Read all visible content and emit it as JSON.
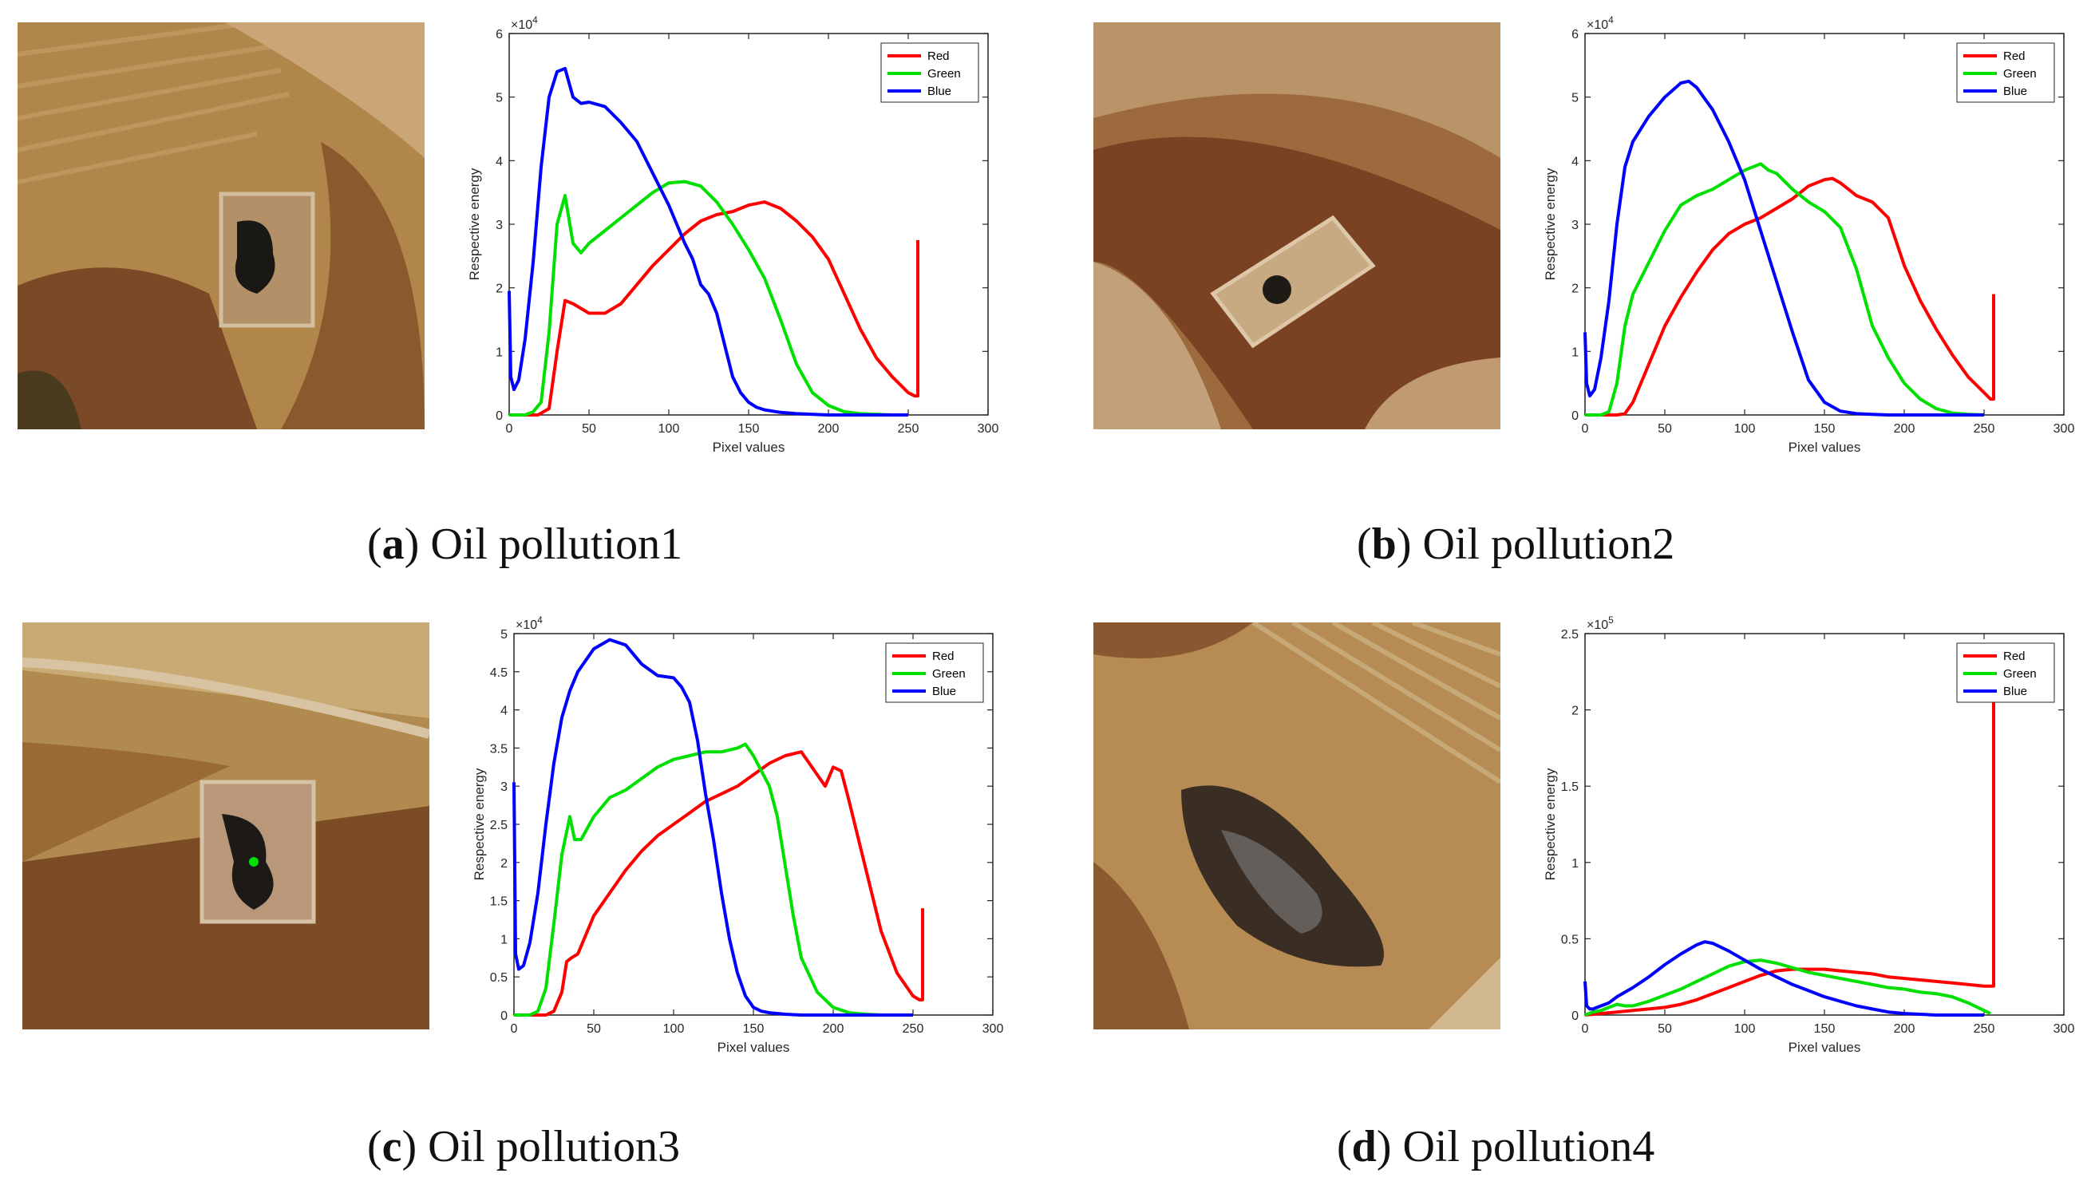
{
  "figure": {
    "panels": [
      {
        "letter": "a",
        "name": "Oil pollution1",
        "photo_alt": "aerial photo of oil pollution site 1"
      },
      {
        "letter": "b",
        "name": "Oil pollution2",
        "photo_alt": "aerial photo of oil pollution site 2"
      },
      {
        "letter": "c",
        "name": "Oil pollution3",
        "photo_alt": "aerial photo of oil pollution site 3"
      },
      {
        "letter": "d",
        "name": "Oil pollution4",
        "photo_alt": "aerial photo of oil pollution site 4"
      }
    ],
    "colors": {
      "red": "#ff0000",
      "green": "#00e000",
      "blue": "#0000ff",
      "axis": "#262626"
    }
  },
  "chart_data": [
    {
      "type": "line",
      "title": "",
      "xlabel": "Pixel values",
      "ylabel": "Respective energy",
      "xlim": [
        0,
        300
      ],
      "ylim": [
        0,
        6
      ],
      "xticks": [
        0,
        50,
        100,
        150,
        200,
        250,
        300
      ],
      "yticks": [
        0,
        1,
        2,
        3,
        4,
        5,
        6
      ],
      "exponent_base": "×10",
      "exponent_power": "4",
      "legend": "top-right",
      "series": [
        {
          "name": "Red",
          "color": "#ff0000",
          "x": [
            0,
            10,
            18,
            25,
            30,
            35,
            40,
            50,
            60,
            70,
            80,
            90,
            100,
            110,
            120,
            130,
            140,
            150,
            160,
            170,
            180,
            190,
            200,
            210,
            220,
            230,
            240,
            250,
            254,
            255,
            256,
            256
          ],
          "y": [
            0,
            0,
            0,
            0.1,
            1.0,
            1.8,
            1.75,
            1.6,
            1.6,
            1.75,
            2.05,
            2.35,
            2.6,
            2.85,
            3.05,
            3.15,
            3.2,
            3.3,
            3.35,
            3.25,
            3.05,
            2.8,
            2.45,
            1.9,
            1.35,
            0.9,
            0.6,
            0.35,
            0.3,
            0.3,
            0.3,
            2.75
          ]
        },
        {
          "name": "Green",
          "color": "#00e000",
          "x": [
            0,
            10,
            15,
            20,
            25,
            30,
            35,
            40,
            45,
            50,
            60,
            70,
            80,
            90,
            100,
            110,
            120,
            130,
            140,
            150,
            160,
            170,
            180,
            190,
            200,
            210,
            220,
            230,
            240,
            250
          ],
          "y": [
            0,
            0,
            0.05,
            0.2,
            1.3,
            3.0,
            3.45,
            2.7,
            2.55,
            2.7,
            2.9,
            3.1,
            3.3,
            3.5,
            3.65,
            3.67,
            3.6,
            3.35,
            3.0,
            2.6,
            2.15,
            1.5,
            0.8,
            0.35,
            0.15,
            0.05,
            0.02,
            0.01,
            0,
            0
          ]
        },
        {
          "name": "Blue",
          "color": "#0000ff",
          "x": [
            0,
            1,
            3,
            6,
            10,
            15,
            20,
            25,
            30,
            35,
            40,
            45,
            50,
            60,
            70,
            80,
            90,
            100,
            110,
            115,
            120,
            125,
            130,
            135,
            140,
            145,
            150,
            155,
            160,
            170,
            180,
            200,
            250
          ],
          "y": [
            1.95,
            0.6,
            0.4,
            0.55,
            1.2,
            2.4,
            3.9,
            5.0,
            5.4,
            5.45,
            5.0,
            4.9,
            4.92,
            4.85,
            4.6,
            4.3,
            3.8,
            3.3,
            2.7,
            2.45,
            2.05,
            1.9,
            1.6,
            1.1,
            0.6,
            0.35,
            0.2,
            0.12,
            0.08,
            0.04,
            0.02,
            0,
            0
          ]
        }
      ]
    },
    {
      "type": "line",
      "title": "",
      "xlabel": "Pixel values",
      "ylabel": "Respective energy",
      "xlim": [
        0,
        300
      ],
      "ylim": [
        0,
        6
      ],
      "xticks": [
        0,
        50,
        100,
        150,
        200,
        250,
        300
      ],
      "yticks": [
        0,
        1,
        2,
        3,
        4,
        5,
        6
      ],
      "exponent_base": "×10",
      "exponent_power": "4",
      "legend": "top-right",
      "series": [
        {
          "name": "Red",
          "color": "#ff0000",
          "x": [
            0,
            10,
            20,
            25,
            30,
            40,
            50,
            60,
            70,
            80,
            90,
            100,
            110,
            120,
            130,
            140,
            150,
            155,
            160,
            170,
            180,
            190,
            200,
            210,
            220,
            230,
            240,
            250,
            254,
            255,
            256,
            256
          ],
          "y": [
            0,
            0,
            0,
            0.02,
            0.2,
            0.8,
            1.4,
            1.85,
            2.25,
            2.6,
            2.85,
            3.0,
            3.1,
            3.25,
            3.4,
            3.6,
            3.7,
            3.72,
            3.65,
            3.45,
            3.35,
            3.1,
            2.35,
            1.8,
            1.35,
            0.95,
            0.6,
            0.35,
            0.25,
            0.25,
            0.25,
            1.9
          ]
        },
        {
          "name": "Green",
          "color": "#00e000",
          "x": [
            0,
            10,
            15,
            20,
            25,
            30,
            40,
            50,
            60,
            70,
            80,
            90,
            100,
            110,
            115,
            120,
            130,
            140,
            150,
            160,
            170,
            180,
            190,
            200,
            210,
            220,
            230,
            240,
            250
          ],
          "y": [
            0,
            0,
            0.05,
            0.5,
            1.4,
            1.9,
            2.4,
            2.9,
            3.3,
            3.45,
            3.55,
            3.7,
            3.85,
            3.95,
            3.85,
            3.8,
            3.55,
            3.35,
            3.2,
            2.95,
            2.3,
            1.4,
            0.9,
            0.5,
            0.25,
            0.1,
            0.03,
            0.01,
            0
          ]
        },
        {
          "name": "Blue",
          "color": "#0000ff",
          "x": [
            0,
            1,
            3,
            6,
            10,
            15,
            20,
            25,
            30,
            40,
            50,
            60,
            65,
            70,
            80,
            90,
            100,
            110,
            120,
            130,
            140,
            150,
            160,
            170,
            180,
            190,
            200,
            210,
            250
          ],
          "y": [
            1.3,
            0.5,
            0.3,
            0.4,
            0.9,
            1.8,
            3.0,
            3.9,
            4.3,
            4.7,
            5.0,
            5.22,
            5.25,
            5.15,
            4.8,
            4.3,
            3.7,
            2.9,
            2.1,
            1.3,
            0.55,
            0.2,
            0.06,
            0.02,
            0.01,
            0,
            0,
            0,
            0
          ]
        }
      ]
    },
    {
      "type": "line",
      "title": "",
      "xlabel": "Pixel values",
      "ylabel": "Respective energy",
      "xlim": [
        0,
        300
      ],
      "ylim": [
        0,
        5
      ],
      "xticks": [
        0,
        50,
        100,
        150,
        200,
        250,
        300
      ],
      "yticks": [
        0,
        0.5,
        1,
        1.5,
        2,
        2.5,
        3,
        3.5,
        4,
        4.5,
        5
      ],
      "exponent_base": "×10",
      "exponent_power": "4",
      "legend": "top-right",
      "series": [
        {
          "name": "Red",
          "color": "#ff0000",
          "x": [
            0,
            10,
            20,
            25,
            30,
            33,
            36,
            40,
            45,
            50,
            60,
            70,
            80,
            90,
            100,
            110,
            120,
            130,
            140,
            150,
            160,
            170,
            180,
            185,
            190,
            195,
            200,
            205,
            210,
            220,
            230,
            240,
            250,
            254,
            255,
            256,
            256
          ],
          "y": [
            0,
            0,
            0,
            0.05,
            0.3,
            0.7,
            0.75,
            0.8,
            1.05,
            1.3,
            1.6,
            1.9,
            2.15,
            2.35,
            2.5,
            2.65,
            2.8,
            2.9,
            3.0,
            3.15,
            3.3,
            3.4,
            3.45,
            3.3,
            3.15,
            3.0,
            3.25,
            3.2,
            2.8,
            1.95,
            1.1,
            0.55,
            0.25,
            0.2,
            0.2,
            0.2,
            1.4
          ]
        },
        {
          "name": "Green",
          "color": "#00e000",
          "x": [
            0,
            10,
            15,
            20,
            25,
            30,
            35,
            38,
            42,
            50,
            60,
            70,
            80,
            90,
            100,
            110,
            120,
            130,
            140,
            145,
            150,
            155,
            160,
            165,
            170,
            175,
            180,
            190,
            200,
            210,
            220,
            230,
            240,
            250
          ],
          "y": [
            0,
            0,
            0.05,
            0.35,
            1.2,
            2.1,
            2.6,
            2.3,
            2.3,
            2.6,
            2.85,
            2.95,
            3.1,
            3.25,
            3.35,
            3.4,
            3.45,
            3.45,
            3.5,
            3.55,
            3.4,
            3.2,
            3.0,
            2.6,
            1.95,
            1.3,
            0.75,
            0.3,
            0.1,
            0.03,
            0.01,
            0,
            0,
            0
          ]
        },
        {
          "name": "Blue",
          "color": "#0000ff",
          "x": [
            0,
            1,
            3,
            6,
            10,
            15,
            20,
            25,
            30,
            35,
            40,
            50,
            60,
            70,
            80,
            90,
            100,
            105,
            110,
            115,
            120,
            125,
            130,
            135,
            140,
            145,
            150,
            155,
            160,
            170,
            180,
            200,
            250
          ],
          "y": [
            3.05,
            0.8,
            0.6,
            0.65,
            0.95,
            1.6,
            2.5,
            3.3,
            3.9,
            4.25,
            4.5,
            4.8,
            4.92,
            4.85,
            4.6,
            4.45,
            4.42,
            4.3,
            4.1,
            3.6,
            2.9,
            2.3,
            1.6,
            1.0,
            0.55,
            0.25,
            0.1,
            0.05,
            0.03,
            0.01,
            0,
            0,
            0
          ]
        }
      ]
    },
    {
      "type": "line",
      "title": "",
      "xlabel": "Pixel values",
      "ylabel": "Respective energy",
      "xlim": [
        0,
        300
      ],
      "ylim": [
        0,
        2.5
      ],
      "xticks": [
        0,
        50,
        100,
        150,
        200,
        250,
        300
      ],
      "yticks": [
        0,
        0.5,
        1,
        1.5,
        2,
        2.5
      ],
      "exponent_base": "×10",
      "exponent_power": "5",
      "legend": "top-right",
      "series": [
        {
          "name": "Red",
          "color": "#ff0000",
          "x": [
            0,
            10,
            20,
            30,
            40,
            50,
            60,
            70,
            80,
            90,
            100,
            110,
            120,
            130,
            140,
            150,
            160,
            170,
            180,
            190,
            200,
            210,
            220,
            230,
            240,
            250,
            254,
            255,
            256,
            256
          ],
          "y": [
            0,
            0.01,
            0.02,
            0.03,
            0.04,
            0.05,
            0.07,
            0.1,
            0.14,
            0.18,
            0.22,
            0.26,
            0.29,
            0.3,
            0.3,
            0.3,
            0.29,
            0.28,
            0.27,
            0.25,
            0.24,
            0.23,
            0.22,
            0.21,
            0.2,
            0.19,
            0.19,
            0.19,
            0.19,
            2.05
          ]
        },
        {
          "name": "Green",
          "color": "#00e000",
          "x": [
            0,
            5,
            10,
            15,
            20,
            25,
            30,
            40,
            50,
            60,
            70,
            80,
            90,
            100,
            110,
            120,
            130,
            140,
            150,
            160,
            170,
            180,
            190,
            200,
            210,
            220,
            230,
            240,
            250,
            254
          ],
          "y": [
            0,
            0.02,
            0.03,
            0.05,
            0.07,
            0.06,
            0.06,
            0.09,
            0.13,
            0.17,
            0.22,
            0.27,
            0.32,
            0.35,
            0.36,
            0.34,
            0.31,
            0.28,
            0.26,
            0.24,
            0.22,
            0.2,
            0.18,
            0.17,
            0.15,
            0.14,
            0.12,
            0.08,
            0.03,
            0.01
          ]
        },
        {
          "name": "Blue",
          "color": "#0000ff",
          "x": [
            0,
            1,
            3,
            5,
            10,
            15,
            20,
            30,
            40,
            50,
            60,
            70,
            75,
            80,
            90,
            100,
            110,
            120,
            130,
            140,
            150,
            160,
            170,
            180,
            190,
            200,
            210,
            220,
            230,
            240,
            250
          ],
          "y": [
            0.22,
            0.06,
            0.04,
            0.04,
            0.06,
            0.08,
            0.12,
            0.18,
            0.25,
            0.33,
            0.4,
            0.46,
            0.48,
            0.47,
            0.42,
            0.36,
            0.3,
            0.25,
            0.2,
            0.16,
            0.12,
            0.09,
            0.06,
            0.04,
            0.02,
            0.01,
            0.005,
            0,
            0,
            0,
            0
          ]
        }
      ]
    }
  ]
}
